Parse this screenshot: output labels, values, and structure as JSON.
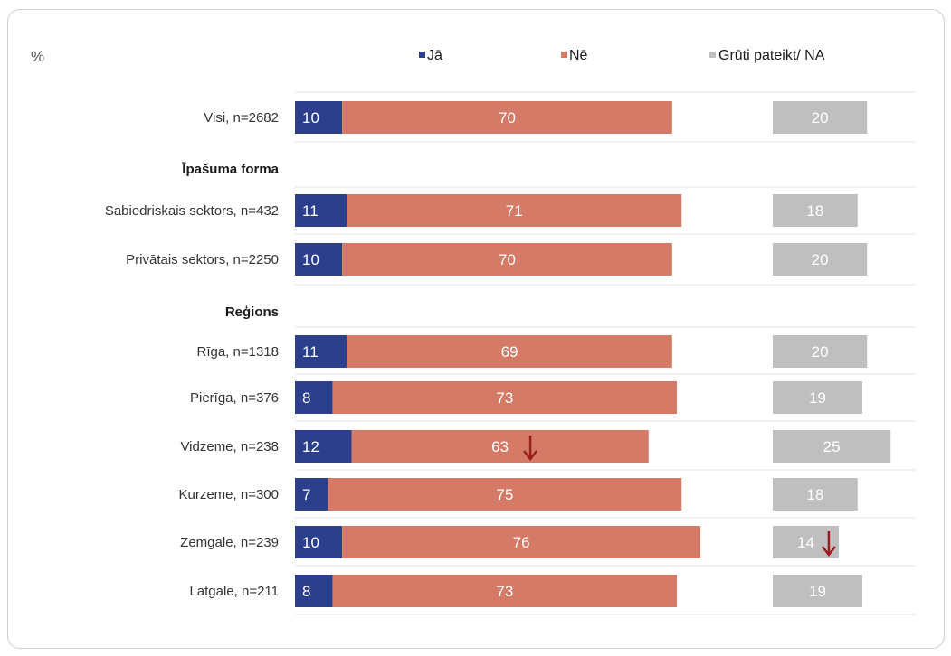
{
  "chart_data": {
    "type": "bar",
    "orientation": "horizontal",
    "stacked": true,
    "unit_label": "%",
    "legend": {
      "position": "top"
    },
    "series": [
      {
        "name": "Jā",
        "color": "#2b3f8c"
      },
      {
        "name": "Nē",
        "color": "#d47a66"
      },
      {
        "name": "Grūti pateikt/ NA",
        "color": "#bfbfbf"
      }
    ],
    "rows": [
      {
        "kind": "category",
        "label": "Visi, n=2682",
        "values": [
          10,
          70,
          20
        ],
        "arrows": []
      },
      {
        "kind": "section",
        "label": "Īpašuma forma"
      },
      {
        "kind": "category",
        "label": "Sabiedriskais sektors, n=432",
        "values": [
          11,
          71,
          18
        ],
        "arrows": []
      },
      {
        "kind": "category",
        "label": "Privātais sektors, n=2250",
        "values": [
          10,
          70,
          20
        ],
        "arrows": []
      },
      {
        "kind": "section",
        "label": "Reģions"
      },
      {
        "kind": "category",
        "label": "Rīga, n=1318",
        "values": [
          11,
          69,
          20
        ],
        "arrows": []
      },
      {
        "kind": "category",
        "label": "Pierīga, n=376",
        "values": [
          8,
          73,
          19
        ],
        "arrows": []
      },
      {
        "kind": "category",
        "label": "Vidzeme, n=238",
        "values": [
          12,
          63,
          25
        ],
        "arrows": [
          1
        ]
      },
      {
        "kind": "category",
        "label": "Kurzeme, n=300",
        "values": [
          7,
          75,
          18
        ],
        "arrows": []
      },
      {
        "kind": "category",
        "label": "Zemgale, n=239",
        "values": [
          10,
          76,
          14
        ],
        "arrows": [
          2
        ]
      },
      {
        "kind": "category",
        "label": "Latgale, n=211",
        "values": [
          8,
          73,
          19
        ],
        "arrows": []
      }
    ],
    "annotation": {
      "arrow_meaning": "significantly lower",
      "arrow_color": "#9b1c1c"
    }
  }
}
